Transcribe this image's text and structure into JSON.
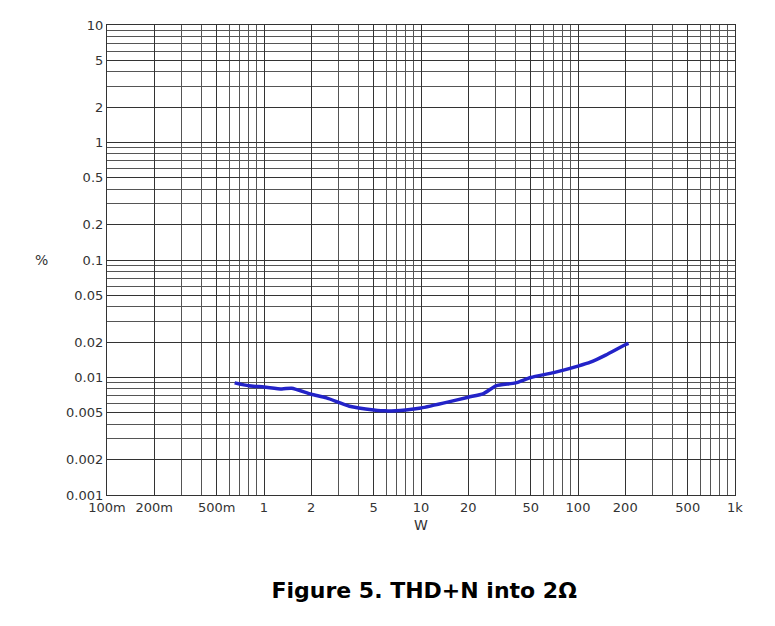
{
  "chart_data": {
    "type": "line",
    "title": "Figure 5. THD+N into 2Ω",
    "x_label": "W",
    "y_label": "%",
    "x": [
      0.65,
      0.8,
      1.0,
      1.3,
      1.5,
      2.0,
      2.5,
      3.5,
      5,
      6,
      8,
      10,
      15,
      20,
      25,
      30,
      40,
      50,
      70,
      100,
      120,
      150,
      200,
      210
    ],
    "values": [
      0.009,
      0.0085,
      0.0083,
      0.008,
      0.0081,
      0.0072,
      0.0067,
      0.0057,
      0.0053,
      0.0052,
      0.0053,
      0.0055,
      0.0062,
      0.0068,
      0.0073,
      0.0085,
      0.009,
      0.01,
      0.011,
      0.0125,
      0.0135,
      0.0155,
      0.019,
      0.0195
    ],
    "color": "#2323c8",
    "log": true,
    "grid": true,
    "xlim": [
      0.1,
      1000
    ],
    "ylim": [
      0.001,
      10
    ],
    "xticks": [
      {
        "value": 0.1,
        "label": "100m"
      },
      {
        "value": 0.2,
        "label": "200m"
      },
      {
        "value": 0.5,
        "label": "500m"
      },
      1,
      2,
      5,
      10,
      20,
      50,
      100,
      200,
      500,
      {
        "value": 1000,
        "label": "1k"
      }
    ],
    "yticks": [
      0.001,
      0.002,
      0.005,
      0.01,
      0.02,
      0.05,
      0.1,
      0.2,
      0.5,
      1,
      2,
      5,
      10
    ]
  }
}
